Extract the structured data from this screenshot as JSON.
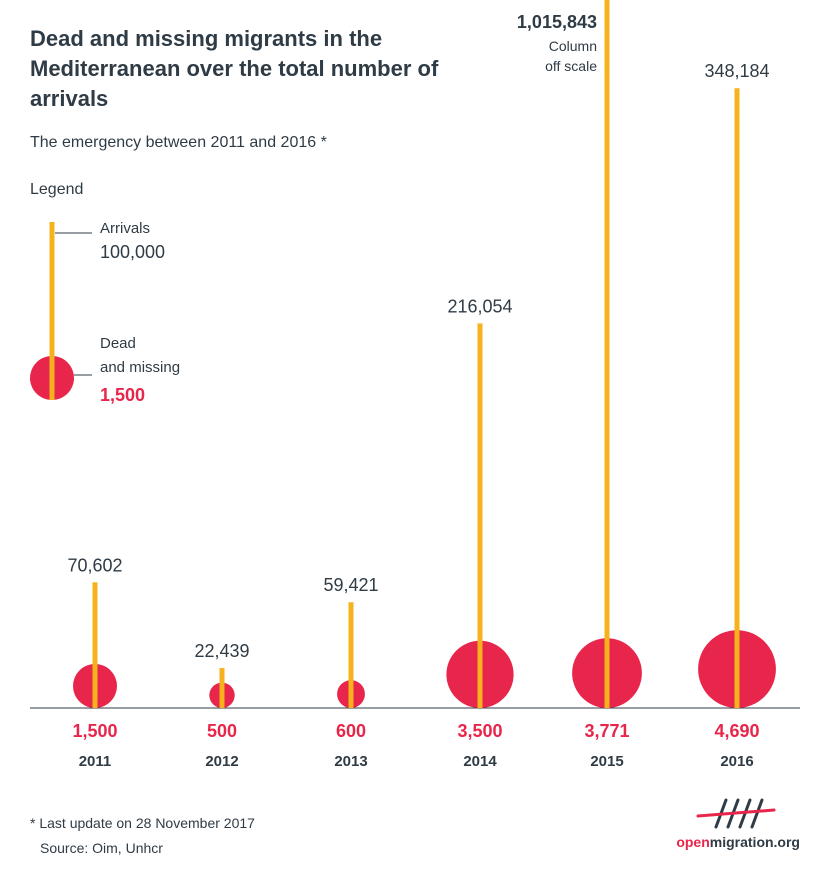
{
  "header": {
    "title": "Dead and missing migrants in the Mediterranean over the total number of arrivals",
    "subtitle": "The emergency between 2011 and 2016 *"
  },
  "legend": {
    "heading": "Legend",
    "arrivals_label": "Arrivals",
    "arrivals_value": "100,000",
    "dead_label_line1": "Dead",
    "dead_label_line2": "and missing",
    "dead_value": "1,500"
  },
  "colors": {
    "arrivals": "#f5b21c",
    "dead": "#e8254a",
    "text": "#2f3b45"
  },
  "chart_data": {
    "type": "bar",
    "title": "Dead and missing migrants in the Mediterranean over the total number of arrivals",
    "categories": [
      "2011",
      "2012",
      "2013",
      "2014",
      "2015",
      "2016"
    ],
    "series": [
      {
        "name": "Arrivals",
        "values": [
          70602,
          22439,
          59421,
          216054,
          1015843,
          348184
        ],
        "labels": [
          "70,602",
          "22,439",
          "59,421",
          "216,054",
          "1,015,843",
          "348,184"
        ]
      },
      {
        "name": "Dead and missing",
        "values": [
          1500,
          500,
          600,
          3500,
          3771,
          4690
        ],
        "labels": [
          "1,500",
          "500",
          "600",
          "3,500",
          "3,771",
          "4,690"
        ]
      }
    ],
    "off_scale": {
      "category": "2015",
      "note_line1": "Column",
      "note_line2": "off scale"
    },
    "legend_reference": {
      "arrivals": 100000,
      "dead": 1500
    }
  },
  "footer": {
    "footnote": "* Last update on 28 November 2017",
    "source": "Source: Oim, Unhcr",
    "logo_open": "open",
    "logo_rest": "migration.org"
  }
}
